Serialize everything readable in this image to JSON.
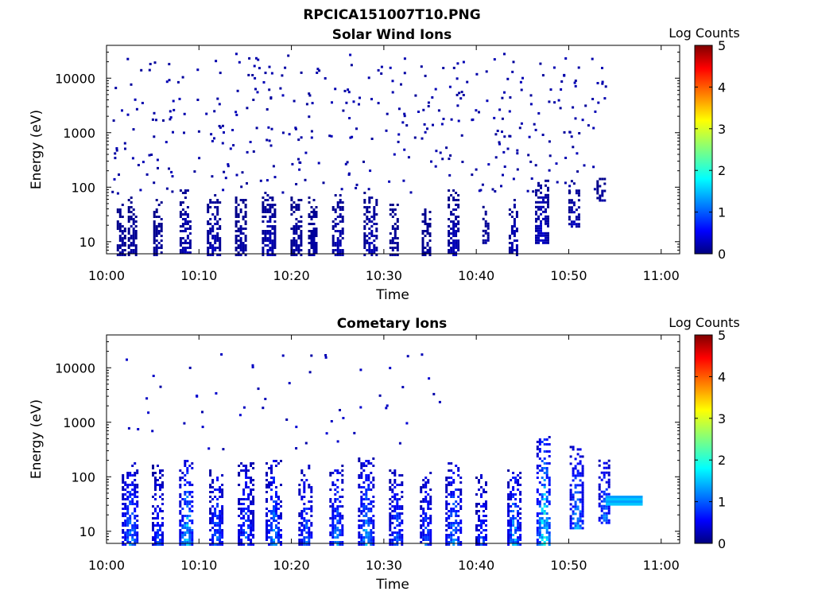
{
  "figure": {
    "title": "RPCICA151007T10.PNG"
  },
  "chart_data": [
    {
      "type": "heatmap",
      "title": "Solar Wind Ions",
      "xlabel": "Time",
      "ylabel": "Energy (eV)",
      "yscale": "log",
      "ylim": [
        6,
        40000
      ],
      "xlim": [
        "10:00",
        "11:02"
      ],
      "xticks": [
        "10:00",
        "10:10",
        "10:20",
        "10:30",
        "10:40",
        "10:50",
        "11:00"
      ],
      "yticks": [
        "10",
        "100",
        "1000",
        "10000"
      ],
      "colorbar": {
        "label": "Log Counts",
        "range": [
          0,
          5
        ],
        "ticks": [
          "0",
          "1",
          "2",
          "3",
          "4",
          "5"
        ]
      },
      "sparse_scatter": {
        "time_range_min": [
          0.5,
          54.0
        ],
        "energy_range_eV": [
          80,
          30000
        ],
        "level": 0.2,
        "note_count": 380
      },
      "bursts": [
        {
          "t": 1.5,
          "w": 0.8,
          "e_low": 6,
          "e_high": 60,
          "level": 0.2
        },
        {
          "t": 2.7,
          "w": 0.8,
          "e_low": 6,
          "e_high": 70,
          "level": 0.2
        },
        {
          "t": 5.5,
          "w": 0.9,
          "e_low": 6,
          "e_high": 65,
          "level": 0.2
        },
        {
          "t": 8.5,
          "w": 1.2,
          "e_low": 6,
          "e_high": 100,
          "level": 0.3
        },
        {
          "t": 11.5,
          "w": 1.3,
          "e_low": 6,
          "e_high": 80,
          "level": 0.3
        },
        {
          "t": 14.5,
          "w": 1.2,
          "e_low": 6,
          "e_high": 75,
          "level": 0.2
        },
        {
          "t": 17.5,
          "w": 1.4,
          "e_low": 6,
          "e_high": 90,
          "level": 0.3
        },
        {
          "t": 20.5,
          "w": 1.2,
          "e_low": 6,
          "e_high": 80,
          "level": 0.2
        },
        {
          "t": 22.3,
          "w": 1.0,
          "e_low": 6,
          "e_high": 70,
          "level": 0.2
        },
        {
          "t": 25.0,
          "w": 1.2,
          "e_low": 6,
          "e_high": 75,
          "level": 0.3
        },
        {
          "t": 28.5,
          "w": 1.4,
          "e_low": 6,
          "e_high": 85,
          "level": 0.3
        },
        {
          "t": 31.0,
          "w": 0.8,
          "e_low": 6,
          "e_high": 50,
          "level": 0.2
        },
        {
          "t": 34.5,
          "w": 0.8,
          "e_low": 6,
          "e_high": 45,
          "level": 0.2
        },
        {
          "t": 37.5,
          "w": 1.2,
          "e_low": 6,
          "e_high": 100,
          "level": 0.3
        },
        {
          "t": 41.0,
          "w": 0.7,
          "e_low": 10,
          "e_high": 50,
          "level": 0.2
        },
        {
          "t": 44.0,
          "w": 1.0,
          "e_low": 6,
          "e_high": 70,
          "level": 0.3
        },
        {
          "t": 47.0,
          "w": 1.3,
          "e_low": 10,
          "e_high": 150,
          "level": 0.4
        },
        {
          "t": 50.5,
          "w": 1.1,
          "e_low": 20,
          "e_high": 150,
          "level": 0.3
        },
        {
          "t": 53.5,
          "w": 1.0,
          "e_low": 60,
          "e_high": 150,
          "level": 0.2
        }
      ]
    },
    {
      "type": "heatmap",
      "title": "Cometary Ions",
      "xlabel": "Time",
      "ylabel": "Energy (eV)",
      "yscale": "log",
      "ylim": [
        6,
        40000
      ],
      "xlim": [
        "10:00",
        "11:02"
      ],
      "xticks": [
        "10:00",
        "10:10",
        "10:20",
        "10:30",
        "10:40",
        "10:50",
        "11:00"
      ],
      "yticks": [
        "10",
        "100",
        "1000",
        "10000"
      ],
      "colorbar": {
        "label": "Log Counts",
        "range": [
          0,
          5
        ],
        "ticks": [
          "0",
          "1",
          "2",
          "3",
          "4",
          "5"
        ]
      },
      "sparse_scatter": {
        "time_range_min": [
          1.0,
          36.0
        ],
        "energy_range_eV": [
          300,
          22000
        ],
        "level": 0.3,
        "note_count": 55
      },
      "bursts": [
        {
          "t": 2.5,
          "w": 1.7,
          "e_low": 6,
          "e_high": 200,
          "level": 1.2
        },
        {
          "t": 5.5,
          "w": 1.2,
          "e_low": 6,
          "e_high": 180,
          "level": 0.9
        },
        {
          "t": 8.6,
          "w": 1.5,
          "e_low": 6,
          "e_high": 220,
          "level": 1.5
        },
        {
          "t": 11.8,
          "w": 1.4,
          "e_low": 6,
          "e_high": 150,
          "level": 1.1
        },
        {
          "t": 15.0,
          "w": 1.6,
          "e_low": 6,
          "e_high": 200,
          "level": 1.0
        },
        {
          "t": 18.0,
          "w": 1.6,
          "e_low": 6,
          "e_high": 250,
          "level": 1.2
        },
        {
          "t": 21.5,
          "w": 1.5,
          "e_low": 6,
          "e_high": 180,
          "level": 1.0
        },
        {
          "t": 24.8,
          "w": 1.4,
          "e_low": 6,
          "e_high": 170,
          "level": 1.2
        },
        {
          "t": 28.0,
          "w": 1.6,
          "e_low": 6,
          "e_high": 250,
          "level": 1.3
        },
        {
          "t": 31.3,
          "w": 1.5,
          "e_low": 6,
          "e_high": 150,
          "level": 1.0
        },
        {
          "t": 34.5,
          "w": 1.2,
          "e_low": 6,
          "e_high": 140,
          "level": 1.0
        },
        {
          "t": 37.5,
          "w": 1.7,
          "e_low": 6,
          "e_high": 220,
          "level": 1.2
        },
        {
          "t": 40.5,
          "w": 1.2,
          "e_low": 6,
          "e_high": 120,
          "level": 0.9
        },
        {
          "t": 44.0,
          "w": 1.3,
          "e_low": 6,
          "e_high": 150,
          "level": 1.4
        },
        {
          "t": 47.2,
          "w": 1.4,
          "e_low": 6,
          "e_high": 600,
          "level": 1.9
        },
        {
          "t": 50.8,
          "w": 1.4,
          "e_low": 12,
          "e_high": 400,
          "level": 1.4
        },
        {
          "t": 53.8,
          "w": 1.2,
          "e_low": 15,
          "e_high": 250,
          "level": 1.2
        }
      ],
      "band": {
        "t_start": 54.0,
        "t_end": 58.0,
        "e_low": 30,
        "e_high": 45,
        "level": 1.6
      }
    }
  ]
}
